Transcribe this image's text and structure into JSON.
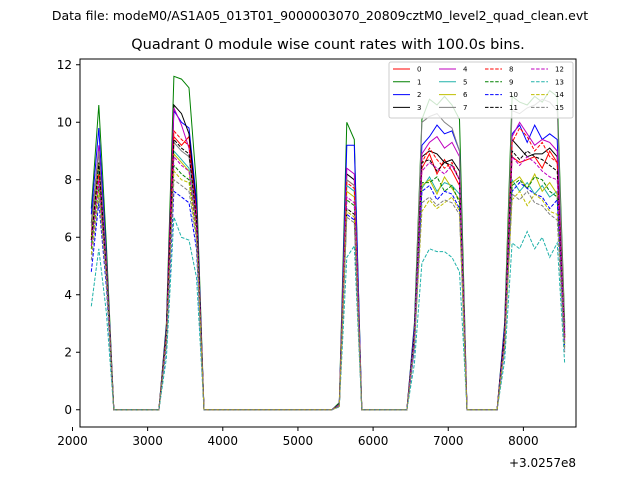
{
  "suptitle": "Data file: modeM0/AS1A05_013T01_9000003070_20809cztM0_level2_quad_clean.evt",
  "chart_data": {
    "type": "line",
    "title": "Quadrant 0 module wise count rates with 100.0s bins.",
    "xlabel": "",
    "ylabel": "",
    "x_offset_label": "+3.0257e8",
    "xlim": [
      2100,
      8700
    ],
    "ylim": [
      -0.6,
      12.2
    ],
    "xticks": [
      2000,
      3000,
      4000,
      5000,
      6000,
      7000,
      8000
    ],
    "yticks": [
      0,
      2,
      4,
      6,
      8,
      10,
      12
    ],
    "grid": false,
    "legend_position": "top-right",
    "legend_columns": 4,
    "x": [
      2250,
      2350,
      2450,
      2550,
      2650,
      2750,
      2850,
      2950,
      3050,
      3150,
      3250,
      3350,
      3450,
      3550,
      3650,
      3750,
      3850,
      3950,
      4050,
      4150,
      4250,
      4350,
      4450,
      4550,
      4650,
      4750,
      4850,
      4950,
      5050,
      5150,
      5250,
      5350,
      5450,
      5550,
      5650,
      5750,
      5850,
      5950,
      6050,
      6150,
      6250,
      6350,
      6450,
      6550,
      6650,
      6750,
      6850,
      6950,
      7050,
      7150,
      7250,
      7350,
      7450,
      7550,
      7650,
      7750,
      7850,
      7950,
      8050,
      8150,
      8250,
      8350,
      8450,
      8550
    ],
    "series": [
      {
        "name": "0",
        "color": "#ff0000",
        "dash": "solid",
        "values": [
          6.0,
          8.5,
          5.0,
          0.0,
          0.0,
          0.0,
          0.0,
          0.0,
          0.0,
          0.0,
          2.6,
          9.5,
          9.2,
          9.5,
          6.8,
          0.0,
          0.0,
          0.0,
          0.0,
          0.0,
          0.0,
          0.0,
          0.0,
          0.0,
          0.0,
          0.0,
          0.0,
          0.0,
          0.0,
          0.0,
          0.0,
          0.0,
          0.0,
          0.15,
          8.0,
          7.8,
          0.0,
          0.0,
          0.0,
          0.0,
          0.0,
          0.0,
          0.0,
          2.5,
          8.4,
          8.9,
          8.2,
          8.7,
          8.3,
          7.8,
          0.0,
          0.0,
          0.0,
          0.0,
          0.0,
          2.5,
          8.8,
          8.6,
          8.7,
          8.8,
          8.4,
          9.0,
          8.6,
          2.5
        ]
      },
      {
        "name": "1",
        "color": "#008000",
        "dash": "solid",
        "values": [
          7.0,
          10.6,
          5.8,
          0.0,
          0.0,
          0.0,
          0.0,
          0.0,
          0.0,
          0.0,
          3.0,
          11.6,
          11.5,
          11.2,
          7.8,
          0.0,
          0.0,
          0.0,
          0.0,
          0.0,
          0.0,
          0.0,
          0.0,
          0.0,
          0.0,
          0.0,
          0.0,
          0.0,
          0.0,
          0.0,
          0.0,
          0.0,
          0.0,
          0.25,
          10.0,
          9.4,
          0.0,
          0.0,
          0.0,
          0.0,
          0.0,
          0.0,
          0.0,
          3.0,
          10.1,
          10.8,
          10.6,
          10.9,
          10.6,
          10.1,
          0.0,
          0.0,
          0.0,
          0.0,
          0.0,
          3.0,
          10.9,
          10.7,
          10.6,
          10.9,
          10.7,
          11.1,
          10.9,
          3.0
        ]
      },
      {
        "name": "2",
        "color": "#0000ff",
        "dash": "solid",
        "values": [
          6.8,
          9.8,
          5.4,
          0.0,
          0.0,
          0.0,
          0.0,
          0.0,
          0.0,
          0.0,
          2.9,
          10.4,
          10.0,
          9.8,
          7.3,
          0.0,
          0.0,
          0.0,
          0.0,
          0.0,
          0.0,
          0.0,
          0.0,
          0.0,
          0.0,
          0.0,
          0.0,
          0.0,
          0.0,
          0.0,
          0.0,
          0.0,
          0.0,
          0.2,
          9.2,
          9.2,
          0.0,
          0.0,
          0.0,
          0.0,
          0.0,
          0.0,
          0.0,
          2.9,
          9.2,
          9.5,
          9.9,
          9.6,
          9.7,
          9.0,
          0.0,
          0.0,
          0.0,
          0.0,
          0.0,
          2.9,
          9.6,
          9.9,
          9.3,
          9.9,
          9.4,
          9.6,
          9.4,
          2.8
        ]
      },
      {
        "name": "3",
        "color": "#000000",
        "dash": "solid",
        "values": [
          6.5,
          9.0,
          5.2,
          0.0,
          0.0,
          0.0,
          0.0,
          0.0,
          0.0,
          0.0,
          2.8,
          10.6,
          10.3,
          9.6,
          7.0,
          0.0,
          0.0,
          0.0,
          0.0,
          0.0,
          0.0,
          0.0,
          0.0,
          0.0,
          0.0,
          0.0,
          0.0,
          0.0,
          0.0,
          0.0,
          0.0,
          0.0,
          0.0,
          0.2,
          8.2,
          8.0,
          0.0,
          0.0,
          0.0,
          0.0,
          0.0,
          0.0,
          0.0,
          2.7,
          8.8,
          9.0,
          8.9,
          8.6,
          8.7,
          8.3,
          0.0,
          0.0,
          0.0,
          0.0,
          0.0,
          2.7,
          9.4,
          9.1,
          8.8,
          8.9,
          8.9,
          9.1,
          8.8,
          2.6
        ]
      },
      {
        "name": "4",
        "color": "#bf00bf",
        "dash": "solid",
        "values": [
          6.2,
          9.2,
          5.2,
          0.0,
          0.0,
          0.0,
          0.0,
          0.0,
          0.0,
          0.0,
          2.7,
          10.5,
          9.9,
          9.1,
          6.9,
          0.0,
          0.0,
          0.0,
          0.0,
          0.0,
          0.0,
          0.0,
          0.0,
          0.0,
          0.0,
          0.0,
          0.0,
          0.0,
          0.0,
          0.0,
          0.0,
          0.0,
          0.0,
          0.18,
          8.4,
          8.2,
          0.0,
          0.0,
          0.0,
          0.0,
          0.0,
          0.0,
          0.0,
          2.7,
          8.9,
          9.3,
          9.5,
          9.1,
          9.3,
          8.8,
          0.0,
          0.0,
          0.0,
          0.0,
          0.0,
          2.7,
          9.5,
          10.0,
          9.6,
          9.2,
          9.4,
          9.3,
          9.0,
          2.7
        ]
      },
      {
        "name": "5",
        "color": "#20b2aa",
        "dash": "solid",
        "values": [
          5.8,
          8.4,
          4.8,
          0.0,
          0.0,
          0.0,
          0.0,
          0.0,
          0.0,
          0.0,
          2.5,
          9.0,
          8.7,
          8.4,
          6.4,
          0.0,
          0.0,
          0.0,
          0.0,
          0.0,
          0.0,
          0.0,
          0.0,
          0.0,
          0.0,
          0.0,
          0.0,
          0.0,
          0.0,
          0.0,
          0.0,
          0.0,
          0.0,
          0.15,
          7.8,
          7.6,
          0.0,
          0.0,
          0.0,
          0.0,
          0.0,
          0.0,
          0.0,
          2.4,
          7.7,
          8.1,
          7.6,
          7.9,
          7.8,
          7.5,
          0.0,
          0.0,
          0.0,
          0.0,
          0.0,
          2.4,
          8.0,
          7.6,
          7.9,
          7.5,
          7.8,
          7.4,
          7.6,
          2.3
        ]
      },
      {
        "name": "6",
        "color": "#bfbf00",
        "dash": "solid",
        "values": [
          6.0,
          8.6,
          5.0,
          0.0,
          0.0,
          0.0,
          0.0,
          0.0,
          0.0,
          0.0,
          2.6,
          8.9,
          8.6,
          8.3,
          6.3,
          0.0,
          0.0,
          0.0,
          0.0,
          0.0,
          0.0,
          0.0,
          0.0,
          0.0,
          0.0,
          0.0,
          0.0,
          0.0,
          0.0,
          0.0,
          0.0,
          0.0,
          0.0,
          0.15,
          7.6,
          7.4,
          0.0,
          0.0,
          0.0,
          0.0,
          0.0,
          0.0,
          0.0,
          2.4,
          7.8,
          8.0,
          7.5,
          8.1,
          7.7,
          7.3,
          0.0,
          0.0,
          0.0,
          0.0,
          0.0,
          2.4,
          7.9,
          8.1,
          7.7,
          8.2,
          7.6,
          7.9,
          7.5,
          2.3
        ]
      },
      {
        "name": "7",
        "color": "#808080",
        "dash": "solid",
        "values": [
          6.4,
          9.0,
          5.1,
          0.0,
          0.0,
          0.0,
          0.0,
          0.0,
          0.0,
          0.0,
          2.7,
          9.3,
          9.0,
          8.8,
          6.6,
          0.0,
          0.0,
          0.0,
          0.0,
          0.0,
          0.0,
          0.0,
          0.0,
          0.0,
          0.0,
          0.0,
          0.0,
          0.0,
          0.0,
          0.0,
          0.0,
          0.0,
          0.0,
          0.18,
          8.0,
          7.8,
          0.0,
          0.0,
          0.0,
          0.0,
          0.0,
          0.0,
          0.0,
          2.6,
          10.0,
          10.2,
          10.3,
          10.0,
          9.8,
          9.0,
          0.0,
          0.0,
          0.0,
          0.0,
          0.0,
          2.6,
          10.4,
          10.3,
          10.5,
          10.6,
          10.8,
          10.7,
          10.4,
          2.9
        ]
      },
      {
        "name": "8",
        "color": "#ff0000",
        "dash": "dashed",
        "values": [
          5.9,
          8.2,
          4.9,
          0.0,
          0.0,
          0.0,
          0.0,
          0.0,
          0.0,
          0.0,
          2.6,
          9.7,
          9.4,
          9.2,
          6.7,
          0.0,
          0.0,
          0.0,
          0.0,
          0.0,
          0.0,
          0.0,
          0.0,
          0.0,
          0.0,
          0.0,
          0.0,
          0.0,
          0.0,
          0.0,
          0.0,
          0.0,
          0.0,
          0.15,
          7.9,
          7.7,
          0.0,
          0.0,
          0.0,
          0.0,
          0.0,
          0.0,
          0.0,
          2.5,
          8.6,
          9.1,
          8.7,
          8.4,
          8.6,
          8.0,
          0.0,
          0.0,
          0.0,
          0.0,
          0.0,
          2.5,
          9.3,
          9.8,
          9.5,
          9.0,
          9.3,
          8.8,
          8.6,
          2.5
        ]
      },
      {
        "name": "9",
        "color": "#008000",
        "dash": "dashed",
        "values": [
          5.6,
          7.8,
          4.7,
          0.0,
          0.0,
          0.0,
          0.0,
          0.0,
          0.0,
          0.0,
          2.4,
          8.5,
          8.2,
          8.0,
          6.1,
          0.0,
          0.0,
          0.0,
          0.0,
          0.0,
          0.0,
          0.0,
          0.0,
          0.0,
          0.0,
          0.0,
          0.0,
          0.0,
          0.0,
          0.0,
          0.0,
          0.0,
          0.0,
          0.15,
          7.3,
          7.1,
          0.0,
          0.0,
          0.0,
          0.0,
          0.0,
          0.0,
          0.0,
          2.3,
          7.9,
          7.9,
          8.1,
          7.6,
          7.8,
          7.2,
          0.0,
          0.0,
          0.0,
          0.0,
          0.0,
          2.3,
          7.8,
          8.0,
          7.7,
          8.1,
          8.0,
          7.6,
          7.4,
          2.2
        ]
      },
      {
        "name": "10",
        "color": "#0000ff",
        "dash": "dashed",
        "values": [
          4.8,
          7.2,
          4.3,
          0.0,
          0.0,
          0.0,
          0.0,
          0.0,
          0.0,
          0.0,
          2.2,
          7.6,
          7.4,
          7.2,
          5.6,
          0.0,
          0.0,
          0.0,
          0.0,
          0.0,
          0.0,
          0.0,
          0.0,
          0.0,
          0.0,
          0.0,
          0.0,
          0.0,
          0.0,
          0.0,
          0.0,
          0.0,
          0.0,
          0.12,
          6.8,
          6.6,
          0.0,
          0.0,
          0.0,
          0.0,
          0.0,
          0.0,
          0.0,
          2.1,
          7.6,
          7.8,
          7.3,
          7.6,
          7.5,
          7.0,
          0.0,
          0.0,
          0.0,
          0.0,
          0.0,
          2.1,
          7.6,
          7.9,
          7.7,
          7.5,
          7.4,
          7.0,
          7.3,
          2.1
        ]
      },
      {
        "name": "11",
        "color": "#000000",
        "dash": "dashed",
        "values": [
          5.9,
          8.6,
          4.9,
          0.0,
          0.0,
          0.0,
          0.0,
          0.0,
          0.0,
          0.0,
          2.6,
          9.4,
          9.1,
          8.9,
          6.6,
          0.0,
          0.0,
          0.0,
          0.0,
          0.0,
          0.0,
          0.0,
          0.0,
          0.0,
          0.0,
          0.0,
          0.0,
          0.0,
          0.0,
          0.0,
          0.0,
          0.0,
          0.0,
          0.15,
          7.0,
          6.8,
          0.0,
          0.0,
          0.0,
          0.0,
          0.0,
          0.0,
          0.0,
          2.6,
          8.6,
          8.7,
          8.3,
          8.6,
          8.5,
          8.0,
          0.0,
          0.0,
          0.0,
          0.0,
          0.0,
          2.6,
          9.0,
          8.7,
          9.0,
          8.8,
          8.7,
          8.5,
          8.3,
          2.5
        ]
      },
      {
        "name": "12",
        "color": "#bf00bf",
        "dash": "dashed",
        "values": [
          5.7,
          8.0,
          4.8,
          0.0,
          0.0,
          0.0,
          0.0,
          0.0,
          0.0,
          0.0,
          2.5,
          8.8,
          8.5,
          8.3,
          6.3,
          0.0,
          0.0,
          0.0,
          0.0,
          0.0,
          0.0,
          0.0,
          0.0,
          0.0,
          0.0,
          0.0,
          0.0,
          0.0,
          0.0,
          0.0,
          0.0,
          0.0,
          0.0,
          0.15,
          7.4,
          7.2,
          0.0,
          0.0,
          0.0,
          0.0,
          0.0,
          0.0,
          0.0,
          2.4,
          8.3,
          8.6,
          8.4,
          8.2,
          8.5,
          8.0,
          0.0,
          0.0,
          0.0,
          0.0,
          0.0,
          2.4,
          8.8,
          8.5,
          8.8,
          8.6,
          8.3,
          8.1,
          8.0,
          2.4
        ]
      },
      {
        "name": "13",
        "color": "#20b2aa",
        "dash": "dashed",
        "values": [
          3.6,
          5.6,
          3.4,
          0.0,
          0.0,
          0.0,
          0.0,
          0.0,
          0.0,
          0.0,
          1.8,
          6.7,
          6.0,
          5.9,
          4.6,
          0.0,
          0.0,
          0.0,
          0.0,
          0.0,
          0.0,
          0.0,
          0.0,
          0.0,
          0.0,
          0.0,
          0.0,
          0.0,
          0.0,
          0.0,
          0.0,
          0.0,
          0.0,
          0.1,
          5.3,
          5.7,
          0.0,
          0.0,
          0.0,
          0.0,
          0.0,
          0.0,
          0.0,
          1.6,
          5.1,
          5.6,
          5.5,
          5.5,
          5.3,
          4.8,
          0.0,
          0.0,
          0.0,
          0.0,
          0.0,
          1.7,
          5.8,
          5.6,
          6.2,
          5.6,
          6.0,
          5.3,
          5.8,
          1.6
        ]
      },
      {
        "name": "14",
        "color": "#bfbf00",
        "dash": "dashed",
        "values": [
          5.4,
          7.6,
          4.6,
          0.0,
          0.0,
          0.0,
          0.0,
          0.0,
          0.0,
          0.0,
          2.4,
          8.3,
          8.0,
          7.9,
          6.0,
          0.0,
          0.0,
          0.0,
          0.0,
          0.0,
          0.0,
          0.0,
          0.0,
          0.0,
          0.0,
          0.0,
          0.0,
          0.0,
          0.0,
          0.0,
          0.0,
          0.0,
          0.0,
          0.12,
          6.9,
          6.7,
          0.0,
          0.0,
          0.0,
          0.0,
          0.0,
          0.0,
          0.0,
          2.2,
          6.9,
          7.3,
          7.0,
          7.2,
          7.4,
          6.9,
          0.0,
          0.0,
          0.0,
          0.0,
          0.0,
          2.2,
          7.3,
          7.6,
          7.1,
          7.5,
          7.3,
          6.9,
          6.8,
          2.1
        ]
      },
      {
        "name": "15",
        "color": "#808080",
        "dash": "dashed",
        "values": [
          5.2,
          7.4,
          4.5,
          0.0,
          0.0,
          0.0,
          0.0,
          0.0,
          0.0,
          0.0,
          2.3,
          8.0,
          7.8,
          7.6,
          5.9,
          0.0,
          0.0,
          0.0,
          0.0,
          0.0,
          0.0,
          0.0,
          0.0,
          0.0,
          0.0,
          0.0,
          0.0,
          0.0,
          0.0,
          0.0,
          0.0,
          0.0,
          0.0,
          0.12,
          6.7,
          6.5,
          0.0,
          0.0,
          0.0,
          0.0,
          0.0,
          0.0,
          0.0,
          2.2,
          7.2,
          7.4,
          7.1,
          7.3,
          7.2,
          6.8,
          0.0,
          0.0,
          0.0,
          0.0,
          0.0,
          2.2,
          7.5,
          7.3,
          7.6,
          7.2,
          7.1,
          6.8,
          6.6,
          2.0
        ]
      }
    ]
  }
}
